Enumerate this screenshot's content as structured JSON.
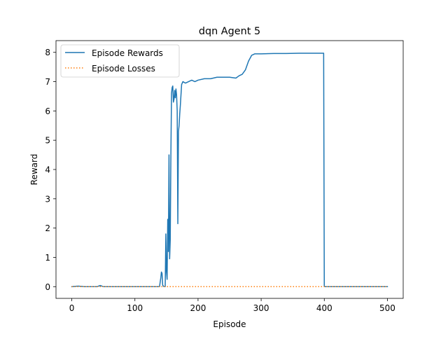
{
  "chart_data": {
    "type": "line",
    "title": "dqn Agent 5",
    "xlabel": "Episode",
    "ylabel": "Reward",
    "xlim": [
      -25,
      525
    ],
    "ylim": [
      -0.4,
      8.4
    ],
    "xticks": [
      0,
      100,
      200,
      300,
      400,
      500
    ],
    "yticks": [
      0,
      1,
      2,
      3,
      4,
      5,
      6,
      7,
      8
    ],
    "grid": false,
    "legend_position": "top-left",
    "series": [
      {
        "name": "Episode Rewards",
        "color": "#1f77b4",
        "style": "solid",
        "points": [
          [
            0,
            0.0
          ],
          [
            10,
            0.02
          ],
          [
            20,
            0.0
          ],
          [
            40,
            0.0
          ],
          [
            45,
            0.04
          ],
          [
            50,
            0.0
          ],
          [
            100,
            0.0
          ],
          [
            139,
            0.0
          ],
          [
            141,
            0.3
          ],
          [
            142,
            0.5
          ],
          [
            143,
            0.45
          ],
          [
            144,
            0.05
          ],
          [
            146,
            0.0
          ],
          [
            148,
            0.0
          ],
          [
            149,
            1.8
          ],
          [
            150,
            0.5
          ],
          [
            151,
            0.25
          ],
          [
            152,
            2.3
          ],
          [
            153,
            1.2
          ],
          [
            154,
            4.5
          ],
          [
            155,
            0.95
          ],
          [
            156,
            1.6
          ],
          [
            157,
            4.5
          ],
          [
            158,
            6.6
          ],
          [
            159,
            6.8
          ],
          [
            160,
            6.85
          ],
          [
            161,
            6.3
          ],
          [
            162,
            6.4
          ],
          [
            163,
            6.7
          ],
          [
            164,
            6.45
          ],
          [
            165,
            6.75
          ],
          [
            166,
            6.55
          ],
          [
            167,
            6.0
          ],
          [
            168,
            2.15
          ],
          [
            169,
            5.3
          ],
          [
            170,
            5.5
          ],
          [
            171,
            5.9
          ],
          [
            172,
            6.2
          ],
          [
            174,
            6.9
          ],
          [
            176,
            7.0
          ],
          [
            180,
            6.95
          ],
          [
            185,
            7.0
          ],
          [
            190,
            7.05
          ],
          [
            195,
            7.0
          ],
          [
            200,
            7.05
          ],
          [
            210,
            7.1
          ],
          [
            220,
            7.1
          ],
          [
            230,
            7.15
          ],
          [
            240,
            7.15
          ],
          [
            250,
            7.15
          ],
          [
            260,
            7.12
          ],
          [
            265,
            7.2
          ],
          [
            270,
            7.25
          ],
          [
            275,
            7.4
          ],
          [
            280,
            7.7
          ],
          [
            285,
            7.9
          ],
          [
            290,
            7.95
          ],
          [
            300,
            7.95
          ],
          [
            320,
            7.96
          ],
          [
            340,
            7.96
          ],
          [
            360,
            7.97
          ],
          [
            380,
            7.97
          ],
          [
            399,
            7.97
          ],
          [
            400,
            0.0
          ],
          [
            450,
            0.0
          ],
          [
            500,
            0.0
          ]
        ]
      },
      {
        "name": "Episode Losses",
        "color": "#ff7f0e",
        "style": "dotted",
        "points": [
          [
            0,
            0.0
          ],
          [
            500,
            0.0
          ]
        ]
      }
    ]
  }
}
